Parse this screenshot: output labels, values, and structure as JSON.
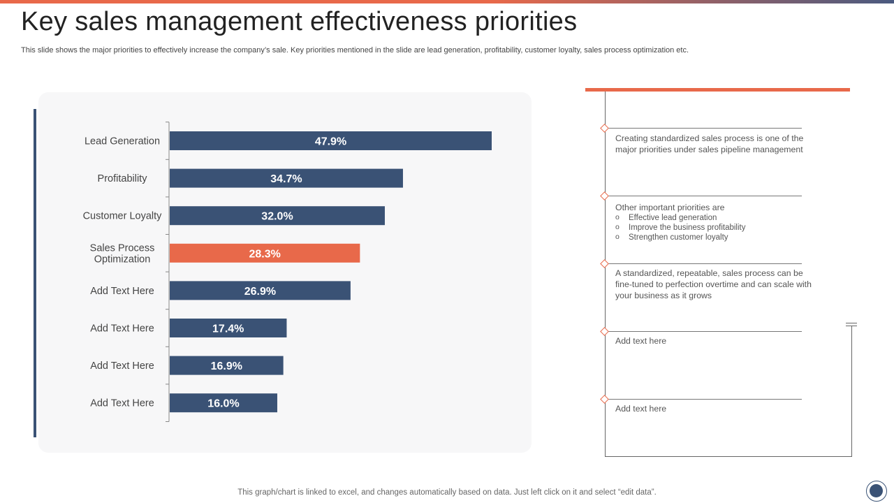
{
  "slide": {
    "title": "Key sales management effectiveness priorities",
    "subtitle": "This slide shows the major priorities to effectively increase the company’s sale. Key priorities mentioned in the slide are lead generation, profitability, customer loyalty, sales process optimization etc.",
    "footer": "This graph/chart is linked to excel,  and changes automatically based on data. Just left click on it and select “edit data”."
  },
  "colors": {
    "bar": "#3a5275",
    "highlight": "#e8694a",
    "accent": "#e8694a"
  },
  "chart_data": {
    "type": "bar",
    "orientation": "horizontal",
    "categories": [
      "Lead Generation",
      "Profitability",
      "Customer Loyalty",
      "Sales Process Optimization",
      "Add Text Here",
      "Add Text Here",
      "Add Text Here",
      "Add Text Here"
    ],
    "category_lines": [
      [
        "Lead Generation"
      ],
      [
        "Profitability"
      ],
      [
        "Customer Loyalty"
      ],
      [
        "Sales Process",
        "Optimization"
      ],
      [
        "Add Text Here"
      ],
      [
        "Add Text Here"
      ],
      [
        "Add Text Here"
      ],
      [
        "Add Text Here"
      ]
    ],
    "values": [
      47.9,
      34.7,
      32.0,
      28.3,
      26.9,
      17.4,
      16.9,
      16.0
    ],
    "value_labels": [
      "47.9%",
      "34.7%",
      "32.0%",
      "28.3%",
      "26.9%",
      "17.4%",
      "16.9%",
      "16.0%"
    ],
    "highlight_index": 3,
    "xlim": [
      0,
      60
    ],
    "title": "",
    "xlabel": "",
    "ylabel": "",
    "grid": false
  },
  "timeline": {
    "items": [
      {
        "text": "Creating standardized sales process is one of the major priorities under sales pipeline management"
      },
      {
        "heading": "Other important priorities are",
        "bullets": [
          "Effective lead generation",
          "Improve the business profitability",
          "Strengthen customer loyalty"
        ]
      },
      {
        "text": "A standardized, repeatable, sales process can be fine-tuned to perfection overtime and can scale with your business as it grows"
      },
      {
        "text": "Add text here"
      },
      {
        "text": "Add text here"
      }
    ]
  }
}
